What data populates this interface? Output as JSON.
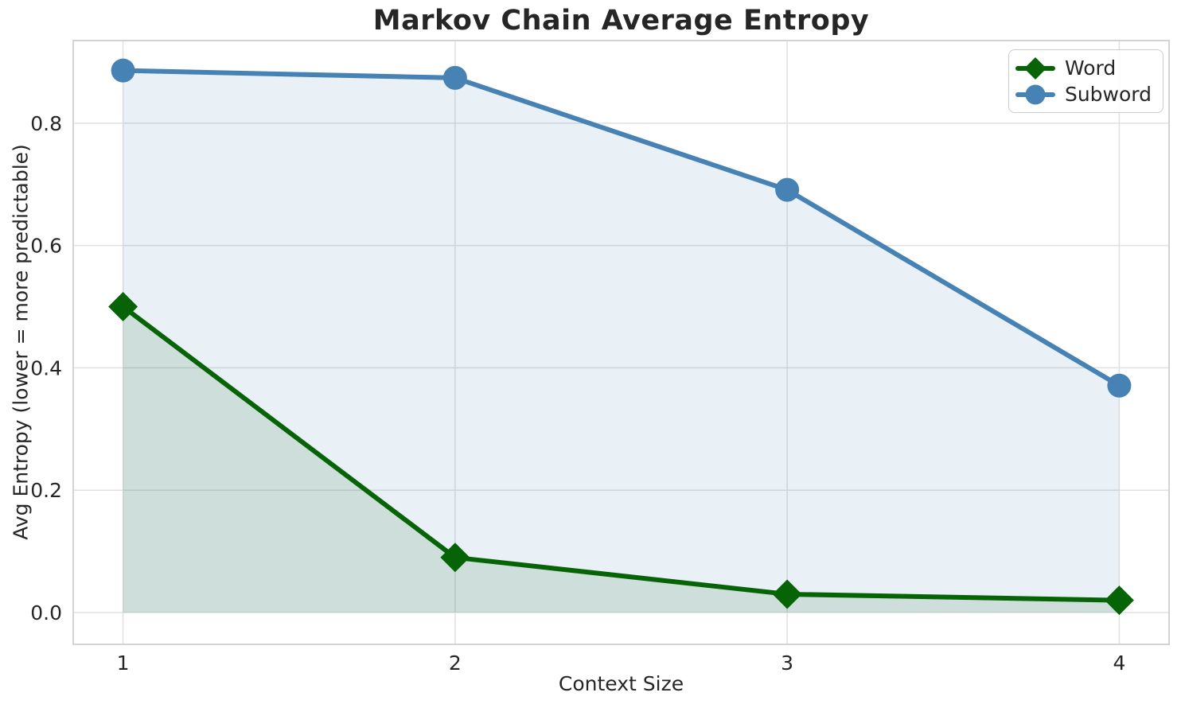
{
  "chart_data": {
    "type": "line",
    "title": "Markov Chain Average Entropy",
    "xlabel": "Context Size",
    "ylabel": "Avg Entropy (lower = more predictable)",
    "x": [
      1,
      2,
      3,
      4
    ],
    "series": [
      {
        "name": "Word",
        "color": "#066406",
        "marker": "diamond",
        "fill_alpha": 0.12,
        "values": [
          0.5,
          0.09,
          0.03,
          0.02
        ]
      },
      {
        "name": "Subword",
        "color": "#4682b4",
        "marker": "circle",
        "fill_alpha": 0.12,
        "values": [
          0.886,
          0.874,
          0.691,
          0.371
        ]
      }
    ],
    "xlim": [
      0.85,
      4.15
    ],
    "ylim": [
      -0.052,
      0.935
    ],
    "xticks": [
      1,
      2,
      3,
      4
    ],
    "xtick_labels": [
      "1",
      "2",
      "3",
      "4"
    ],
    "yticks": [
      0.0,
      0.2,
      0.4,
      0.6,
      0.8
    ],
    "ytick_labels": [
      "0.0",
      "0.2",
      "0.4",
      "0.6",
      "0.8"
    ],
    "grid": true,
    "area_fill": true,
    "legend_position": "upper right",
    "colors": {
      "grid": "#e0e0e0",
      "spine": "#d3d3d3",
      "text": "#262626",
      "title": "#262626",
      "background": "#ffffff"
    }
  }
}
